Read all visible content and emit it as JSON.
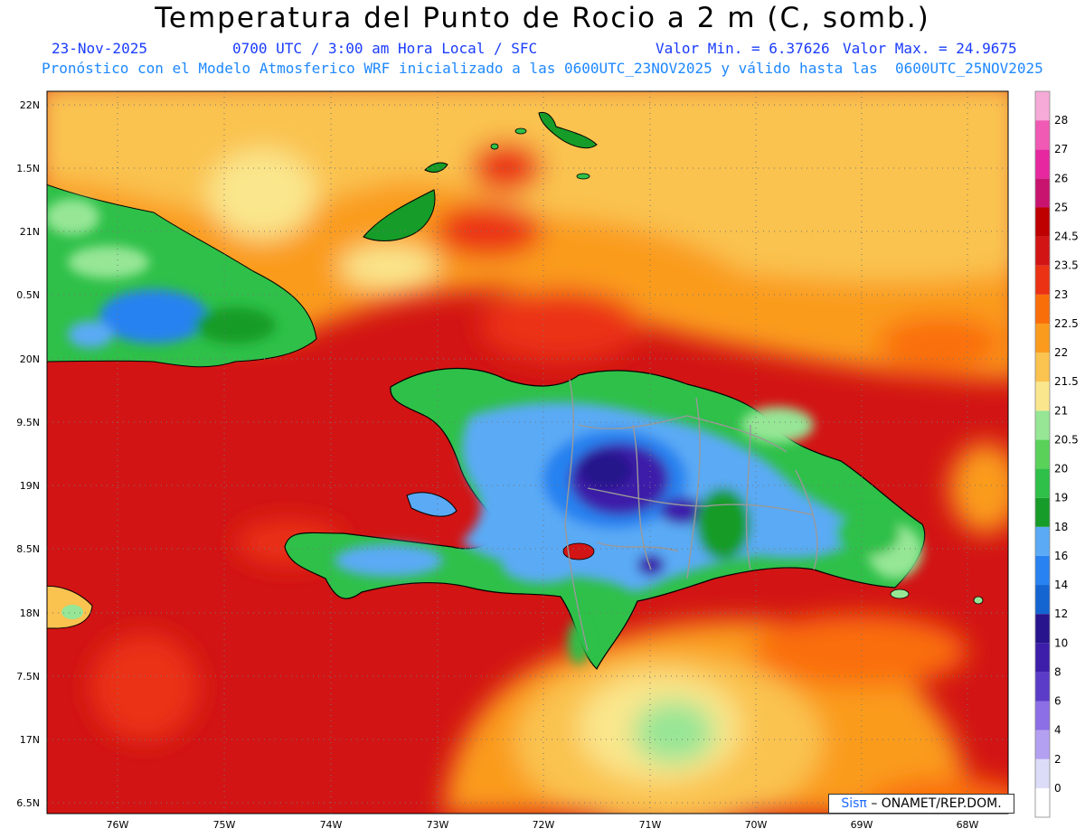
{
  "header": {
    "title": "Temperatura del Punto de Rocio a 2 m (C, somb.)",
    "date": "23-Nov-2025",
    "time": "0700 UTC / 3:00 am Hora Local / SFC",
    "min_label": "Valor Min. = 6.37626",
    "max_label": "Valor Max. = 24.9675",
    "model_line": "Pronóstico con el Modelo Atmosferico WRF inicializado a las 0600UTC_23NOV2025 y válido hasta las  0600UTC_25NOV2025"
  },
  "axes": {
    "lat_labels": [
      "22N",
      "1.5N",
      "21N",
      "0.5N",
      "20N",
      "9.5N",
      "19N",
      "8.5N",
      "18N",
      "7.5N",
      "17N",
      "6.5N"
    ],
    "lon_labels": [
      "76W",
      "75W",
      "74W",
      "73W",
      "72W",
      "71W",
      "70W",
      "69W",
      "68W"
    ]
  },
  "legend": {
    "labels": [
      "0",
      "2",
      "4",
      "6",
      "8",
      "10",
      "12",
      "14",
      "16",
      "18",
      "19",
      "20",
      "20.5",
      "21",
      "21.5",
      "22",
      "22.5",
      "23",
      "23.5",
      "24.5",
      "25",
      "26",
      "27",
      "28"
    ],
    "colors": [
      "#ffffff",
      "#dcdcf8",
      "#b4a0f0",
      "#8c6ee6",
      "#5a3cc8",
      "#3c1eaa",
      "#28148c",
      "#1464d2",
      "#2882f0",
      "#5aaaf5",
      "#169c28",
      "#2ec048",
      "#5ad25a",
      "#96e696",
      "#fae68c",
      "#fac350",
      "#fa9b1e",
      "#fa6e0a",
      "#eb3214",
      "#d21414",
      "#be0000",
      "#c8146e",
      "#e628a0",
      "#f05ab4",
      "#f5aad7"
    ]
  },
  "credit": {
    "brand": "Sisπ",
    "org": "– ONAMET/REP.DOM."
  }
}
